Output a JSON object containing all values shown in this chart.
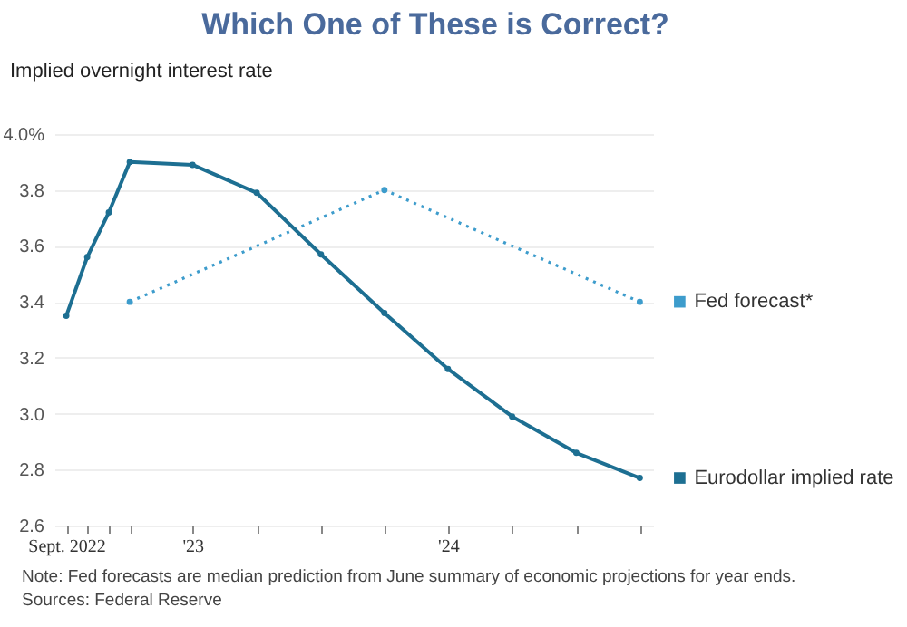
{
  "chart_data": {
    "type": "line",
    "title": "Which One of These is Correct?",
    "ylabel": "Implied overnight interest rate",
    "xlim": [
      "2022-08-15",
      "2024-12-20"
    ],
    "xticks": [
      {
        "value": "2022-09",
        "label": "Sept. 2022"
      },
      {
        "value": "2022-10",
        "label": null
      },
      {
        "value": "2022-11",
        "label": null
      },
      {
        "value": "2022-12",
        "label": null
      },
      {
        "value": "2023-03",
        "label": "'23"
      },
      {
        "value": "2023-06",
        "label": null
      },
      {
        "value": "2023-09",
        "label": null
      },
      {
        "value": "2023-12",
        "label": null
      },
      {
        "value": "2024-03",
        "label": "'24"
      },
      {
        "value": "2024-06",
        "label": null
      },
      {
        "value": "2024-09",
        "label": null
      },
      {
        "value": "2024-12",
        "label": null
      }
    ],
    "ylim": [
      2.6,
      4.0
    ],
    "yticks": [
      2.6,
      2.8,
      {
        "value": 3.0,
        "label": "3.0"
      },
      3.2,
      3.4,
      3.6,
      3.8,
      {
        "value": 4.0,
        "label": "4.0%"
      }
    ],
    "grid": "y",
    "legend": "right",
    "marker": "circle",
    "series": [
      {
        "name": "Fed forecast*",
        "color": "#3d9ccc",
        "line_style": "dotted",
        "x": [
          "2022-12",
          "2023-12",
          "2024-12"
        ],
        "values": [
          3.4,
          3.8,
          3.4
        ]
      },
      {
        "name": "Eurodollar implied rate",
        "color": "#1d6f92",
        "line_style": "solid",
        "x": [
          "2022-09",
          "2022-10",
          "2022-11",
          "2022-12",
          "2023-03",
          "2023-06",
          "2023-09",
          "2023-12",
          "2024-03",
          "2024-06",
          "2024-09",
          "2024-12"
        ],
        "values": [
          3.35,
          3.56,
          3.72,
          3.9,
          3.89,
          3.79,
          3.57,
          3.36,
          3.16,
          2.99,
          2.86,
          2.77
        ]
      }
    ],
    "annotations": [
      "Note: Fed forecasts are median prediction from June summary of economic projections for year ends.",
      "Sources: Federal Reserve"
    ]
  }
}
